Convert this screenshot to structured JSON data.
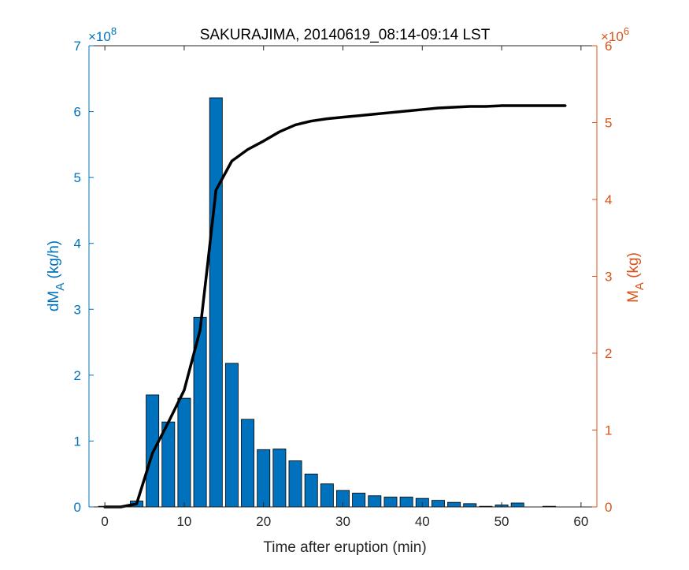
{
  "chart_data": {
    "type": "bar",
    "title": "SAKURAJIMA, 20140619_08:14-09:14 LST",
    "xlabel": "Time after eruption (min)",
    "ylabel_left": {
      "main": "dM",
      "sub": "A",
      "unit": " (kg/h)"
    },
    "ylabel_right": {
      "main": "M",
      "sub": "A",
      "unit": " (kg)"
    },
    "exponent_left": {
      "base": "×10",
      "power": "8"
    },
    "exponent_right": {
      "base": "×10",
      "power": "6"
    },
    "x_ticks": [
      "0",
      "10",
      "20",
      "30",
      "40",
      "50",
      "60"
    ],
    "y_left_ticks": [
      "0",
      "1",
      "2",
      "3",
      "4",
      "5",
      "6",
      "7"
    ],
    "y_right_ticks": [
      "0",
      "1",
      "2",
      "3",
      "4",
      "5",
      "6"
    ],
    "xlim": [
      -2,
      62
    ],
    "ylim_left": [
      0,
      7
    ],
    "ylim_right": [
      0,
      6
    ],
    "colors": {
      "left_axis": "#0072BD",
      "right_axis": "#D95319",
      "bars": "#0072BD",
      "line": "#000000"
    },
    "series": [
      {
        "type": "bar",
        "axis": "left",
        "x": [
          0,
          2,
          4,
          6,
          8,
          10,
          12,
          14,
          16,
          18,
          20,
          22,
          24,
          26,
          28,
          30,
          32,
          34,
          36,
          38,
          40,
          42,
          44,
          46,
          48,
          50,
          52,
          54,
          56
        ],
        "values": [
          0.01,
          0.01,
          0.09,
          1.7,
          1.29,
          1.65,
          2.88,
          6.21,
          2.18,
          1.33,
          0.87,
          0.88,
          0.7,
          0.5,
          0.35,
          0.25,
          0.21,
          0.17,
          0.15,
          0.15,
          0.13,
          0.1,
          0.07,
          0.05,
          0.01,
          0.03,
          0.06,
          0.0,
          0.01
        ]
      },
      {
        "type": "line",
        "axis": "right",
        "x": [
          0,
          2,
          4,
          6,
          8,
          10,
          12,
          13,
          14,
          16,
          18,
          20,
          22,
          24,
          26,
          28,
          30,
          32,
          34,
          36,
          38,
          40,
          42,
          44,
          46,
          48,
          50,
          52,
          54,
          56,
          58
        ],
        "values": [
          0,
          0,
          0.04,
          0.7,
          1.1,
          1.52,
          2.3,
          3.2,
          4.12,
          4.5,
          4.65,
          4.76,
          4.88,
          4.97,
          5.02,
          5.05,
          5.07,
          5.09,
          5.11,
          5.13,
          5.15,
          5.17,
          5.19,
          5.2,
          5.21,
          5.21,
          5.22,
          5.22,
          5.22,
          5.22,
          5.22
        ]
      }
    ]
  }
}
